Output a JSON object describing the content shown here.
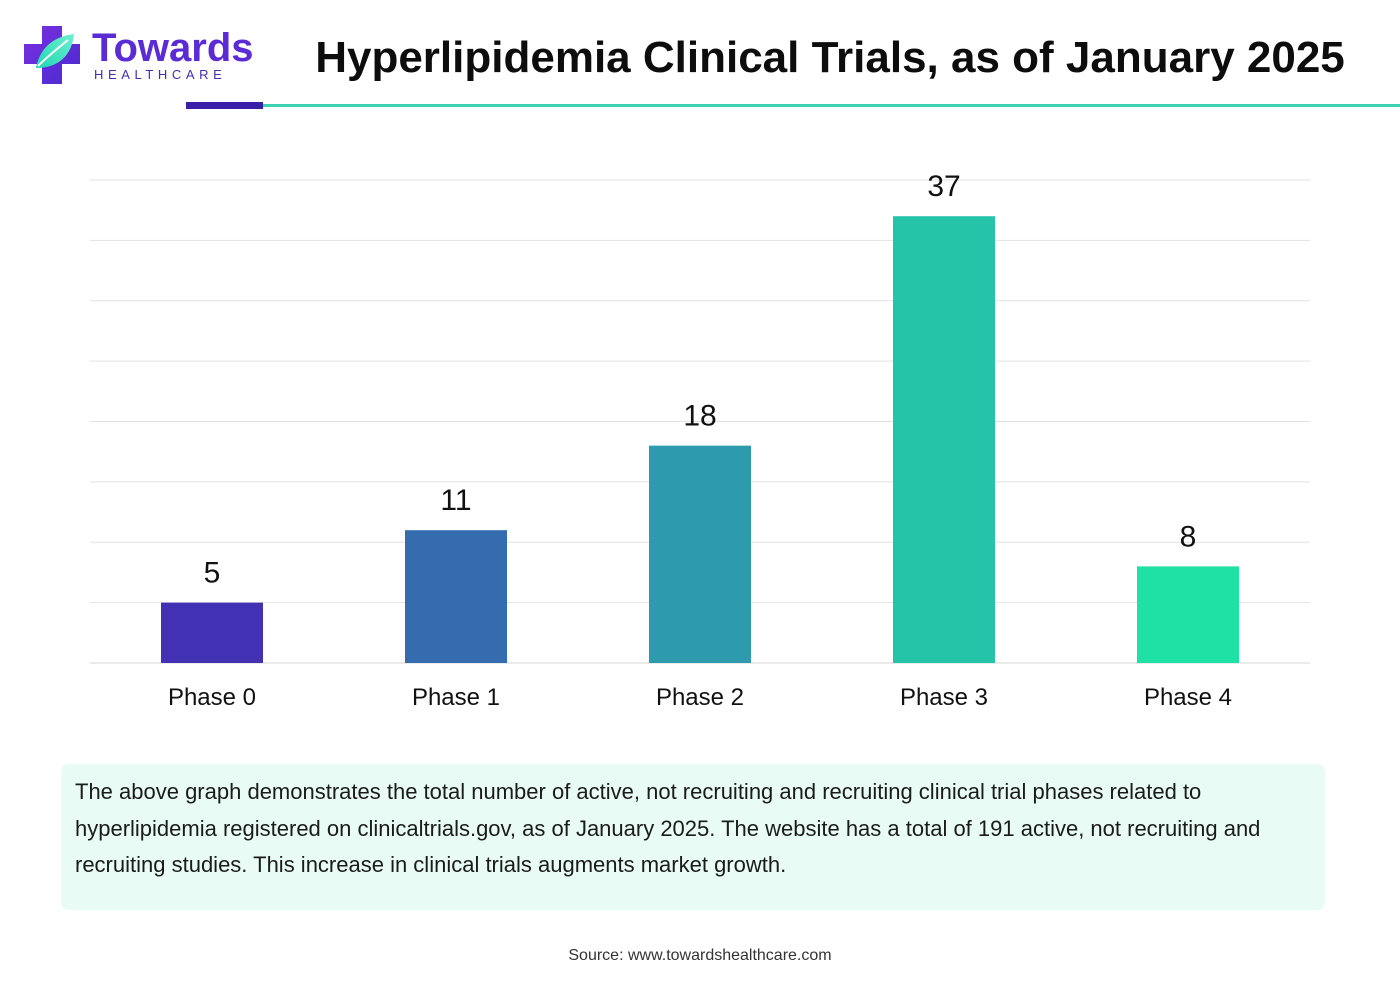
{
  "header": {
    "logo_word": "Towards",
    "logo_sub": "HEALTHCARE",
    "title": "Hyperlipidemia Clinical Trials, as of January 2025"
  },
  "chart_data": {
    "type": "bar",
    "categories": [
      "Phase 0",
      "Phase 1",
      "Phase 2",
      "Phase 3",
      "Phase 4"
    ],
    "values": [
      5,
      11,
      18,
      37,
      8
    ],
    "ylim": [
      0,
      40
    ],
    "grid": true,
    "colors": [
      "#4331b4",
      "#356cb0",
      "#2e9aae",
      "#25c3a8",
      "#1fe0a5"
    ]
  },
  "note": {
    "text": "The above graph demonstrates the total number of active, not recruiting and recruiting clinical trial phases related to hyperlipidemia registered on clinicaltrials.gov, as of January 2025. The website has a total of 191 active, not recruiting and recruiting studies. This increase in clinical trials augments market growth."
  },
  "source": "Source: www.towardshealthcare.com",
  "colors": {
    "brand_purple": "#5b2bd6",
    "accent_teal": "#3ad2b0",
    "note_bg": "#e8fbf5"
  }
}
